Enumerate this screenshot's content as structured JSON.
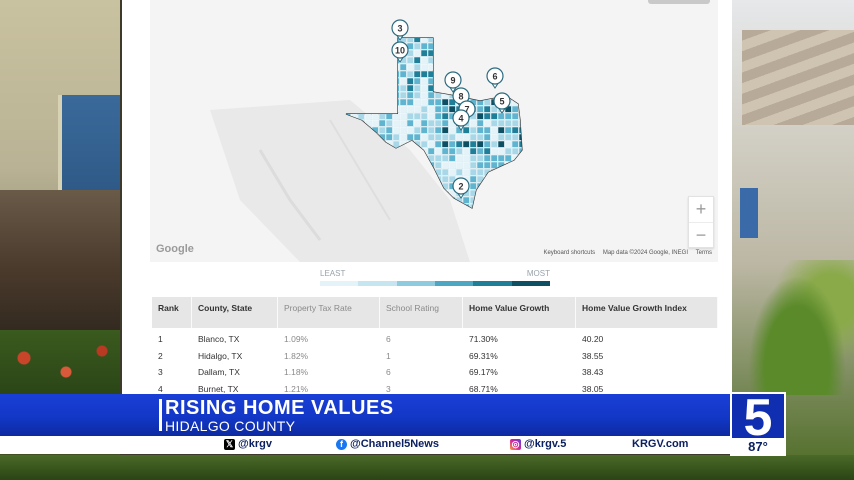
{
  "map": {
    "markers": [
      "3",
      "10",
      "9",
      "6",
      "8",
      "7",
      "4",
      "5",
      "2"
    ],
    "google_label": "Google",
    "footer": [
      "Keyboard shortcuts",
      "Map data ©2024 Google, INEGI",
      "Terms"
    ],
    "zoom_in": "+",
    "zoom_out": "−",
    "fill_colors": [
      "#e3f3f8",
      "#a8d8e8",
      "#5fb4cf",
      "#1f7e98",
      "#0d4f63"
    ]
  },
  "legend": {
    "least": "LEAST",
    "most": "MOST",
    "colors": [
      "#e3f3f8",
      "#c5e6f0",
      "#8fcbdf",
      "#4ea7c2",
      "#1f7e98",
      "#0d4f63"
    ]
  },
  "table": {
    "headers": [
      "Rank",
      "County, State",
      "Property Tax Rate",
      "School Rating",
      "Home Value Growth",
      "Home Value Growth Index"
    ],
    "rows": [
      [
        "1",
        "Blanco, TX",
        "1.09%",
        "6",
        "71.30%",
        "40.20"
      ],
      [
        "2",
        "Hidalgo, TX",
        "1.82%",
        "1",
        "69.31%",
        "38.55"
      ],
      [
        "3",
        "Dallam, TX",
        "1.18%",
        "6",
        "69.17%",
        "38.43"
      ],
      [
        "4",
        "Burnet, TX",
        "1.21%",
        "3",
        "68.71%",
        "38.05"
      ]
    ]
  },
  "lower_third": {
    "title": "RISING HOME VALUES",
    "subtitle": "HIDALGO COUNTY",
    "social": [
      {
        "icon": "x-icon",
        "text": "@krgv"
      },
      {
        "icon": "facebook-icon",
        "text": "@Channel5News"
      },
      {
        "icon": "instagram-icon",
        "text": "@krgv.5"
      },
      {
        "icon": "",
        "text": "KRGV.com"
      }
    ],
    "logo_number": "5",
    "temperature": "87°"
  }
}
